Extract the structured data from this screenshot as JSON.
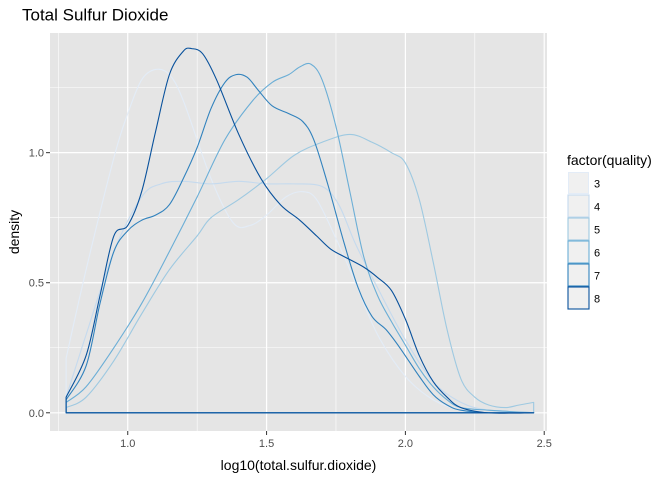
{
  "chart_data": {
    "type": "density",
    "title": "Total Sulfur Dioxide",
    "xlabel": "log10(total.sulfur.dioxide)",
    "ylabel": "density",
    "xlim": [
      0.72,
      2.51
    ],
    "ylim": [
      -0.07,
      1.46
    ],
    "x_ticks": [
      1.0,
      1.5,
      2.0,
      2.5
    ],
    "x_tick_labels": [
      "1.0",
      "1.5",
      "2.0",
      "2.5"
    ],
    "y_ticks": [
      0.0,
      0.5,
      1.0
    ],
    "y_tick_labels": [
      "0.0",
      "0.5",
      "1.0"
    ],
    "x_range": [
      0.778,
      2.462
    ],
    "grid": true,
    "panel_background": "#e5e5e5",
    "grid_color": "#ffffff",
    "legend": {
      "title": "factor(quality)",
      "position": "right",
      "key_fill": "#f0f0f0",
      "entries": [
        "3",
        "4",
        "5",
        "6",
        "7",
        "8"
      ]
    },
    "series": [
      {
        "name": "3",
        "color": "#e3ecf7",
        "points": [
          [
            0.778,
            0.21
          ],
          [
            0.85,
            0.55
          ],
          [
            0.95,
            0.98
          ],
          [
            1.0,
            1.15
          ],
          [
            1.05,
            1.28
          ],
          [
            1.1,
            1.32
          ],
          [
            1.15,
            1.3
          ],
          [
            1.2,
            1.2
          ],
          [
            1.3,
            0.9
          ],
          [
            1.38,
            0.73
          ],
          [
            1.44,
            0.72
          ],
          [
            1.5,
            0.76
          ],
          [
            1.57,
            0.83
          ],
          [
            1.63,
            0.85
          ],
          [
            1.68,
            0.82
          ],
          [
            1.75,
            0.67
          ],
          [
            1.82,
            0.5
          ],
          [
            1.9,
            0.3
          ],
          [
            2.0,
            0.14
          ],
          [
            2.1,
            0.05
          ],
          [
            2.2,
            0.01
          ],
          [
            2.3,
            0.0
          ]
        ]
      },
      {
        "name": "4",
        "color": "#c5daee",
        "points": [
          [
            0.778,
            0.06
          ],
          [
            0.85,
            0.3
          ],
          [
            0.95,
            0.62
          ],
          [
            1.05,
            0.83
          ],
          [
            1.12,
            0.88
          ],
          [
            1.2,
            0.89
          ],
          [
            1.3,
            0.88
          ],
          [
            1.4,
            0.89
          ],
          [
            1.5,
            0.88
          ],
          [
            1.6,
            0.88
          ],
          [
            1.7,
            0.87
          ],
          [
            1.76,
            0.8
          ],
          [
            1.82,
            0.65
          ],
          [
            1.9,
            0.48
          ],
          [
            2.0,
            0.28
          ],
          [
            2.1,
            0.12
          ],
          [
            2.2,
            0.04
          ],
          [
            2.3,
            0.01
          ]
        ]
      },
      {
        "name": "5",
        "color": "#9ec9e1",
        "points": [
          [
            0.778,
            0.02
          ],
          [
            0.85,
            0.06
          ],
          [
            0.95,
            0.2
          ],
          [
            1.05,
            0.38
          ],
          [
            1.15,
            0.55
          ],
          [
            1.25,
            0.68
          ],
          [
            1.3,
            0.75
          ],
          [
            1.4,
            0.82
          ],
          [
            1.5,
            0.9
          ],
          [
            1.6,
            0.99
          ],
          [
            1.7,
            1.04
          ],
          [
            1.8,
            1.07
          ],
          [
            1.88,
            1.04
          ],
          [
            1.95,
            1.0
          ],
          [
            2.0,
            0.96
          ],
          [
            2.05,
            0.82
          ],
          [
            2.1,
            0.58
          ],
          [
            2.15,
            0.32
          ],
          [
            2.2,
            0.13
          ],
          [
            2.25,
            0.06
          ],
          [
            2.3,
            0.03
          ],
          [
            2.36,
            0.02
          ],
          [
            2.41,
            0.03
          ],
          [
            2.462,
            0.04
          ]
        ]
      },
      {
        "name": "6",
        "color": "#6baed6",
        "points": [
          [
            0.778,
            0.04
          ],
          [
            0.85,
            0.1
          ],
          [
            0.95,
            0.25
          ],
          [
            1.05,
            0.42
          ],
          [
            1.15,
            0.62
          ],
          [
            1.25,
            0.83
          ],
          [
            1.35,
            1.05
          ],
          [
            1.45,
            1.2
          ],
          [
            1.52,
            1.27
          ],
          [
            1.58,
            1.3
          ],
          [
            1.62,
            1.33
          ],
          [
            1.66,
            1.34
          ],
          [
            1.7,
            1.28
          ],
          [
            1.75,
            1.1
          ],
          [
            1.8,
            0.85
          ],
          [
            1.85,
            0.6
          ],
          [
            1.9,
            0.45
          ],
          [
            1.95,
            0.35
          ],
          [
            2.0,
            0.26
          ],
          [
            2.05,
            0.17
          ],
          [
            2.1,
            0.1
          ],
          [
            2.15,
            0.05
          ],
          [
            2.2,
            0.02
          ],
          [
            2.3,
            0.01
          ]
        ]
      },
      {
        "name": "7",
        "color": "#3182bd",
        "points": [
          [
            0.778,
            0.05
          ],
          [
            0.85,
            0.18
          ],
          [
            0.9,
            0.42
          ],
          [
            0.95,
            0.62
          ],
          [
            1.0,
            0.7
          ],
          [
            1.05,
            0.74
          ],
          [
            1.1,
            0.76
          ],
          [
            1.15,
            0.8
          ],
          [
            1.2,
            0.9
          ],
          [
            1.25,
            1.02
          ],
          [
            1.3,
            1.17
          ],
          [
            1.35,
            1.27
          ],
          [
            1.39,
            1.3
          ],
          [
            1.43,
            1.29
          ],
          [
            1.47,
            1.24
          ],
          [
            1.52,
            1.18
          ],
          [
            1.58,
            1.15
          ],
          [
            1.63,
            1.12
          ],
          [
            1.67,
            1.05
          ],
          [
            1.72,
            0.88
          ],
          [
            1.78,
            0.65
          ],
          [
            1.83,
            0.48
          ],
          [
            1.88,
            0.37
          ],
          [
            1.93,
            0.32
          ],
          [
            1.98,
            0.25
          ],
          [
            2.05,
            0.14
          ],
          [
            2.1,
            0.07
          ],
          [
            2.15,
            0.03
          ],
          [
            2.2,
            0.01
          ],
          [
            2.3,
            0.0
          ]
        ]
      },
      {
        "name": "8",
        "color": "#08519c",
        "points": [
          [
            0.778,
            0.06
          ],
          [
            0.85,
            0.22
          ],
          [
            0.9,
            0.45
          ],
          [
            0.95,
            0.68
          ],
          [
            1.0,
            0.72
          ],
          [
            1.05,
            0.85
          ],
          [
            1.1,
            1.08
          ],
          [
            1.15,
            1.3
          ],
          [
            1.2,
            1.39
          ],
          [
            1.23,
            1.4
          ],
          [
            1.27,
            1.38
          ],
          [
            1.32,
            1.28
          ],
          [
            1.4,
            1.07
          ],
          [
            1.48,
            0.9
          ],
          [
            1.55,
            0.8
          ],
          [
            1.62,
            0.74
          ],
          [
            1.68,
            0.68
          ],
          [
            1.73,
            0.63
          ],
          [
            1.78,
            0.6
          ],
          [
            1.85,
            0.56
          ],
          [
            1.9,
            0.52
          ],
          [
            1.95,
            0.47
          ],
          [
            2.0,
            0.36
          ],
          [
            2.05,
            0.22
          ],
          [
            2.1,
            0.12
          ],
          [
            2.15,
            0.06
          ],
          [
            2.2,
            0.02
          ],
          [
            2.3,
            0.0
          ]
        ]
      }
    ]
  }
}
